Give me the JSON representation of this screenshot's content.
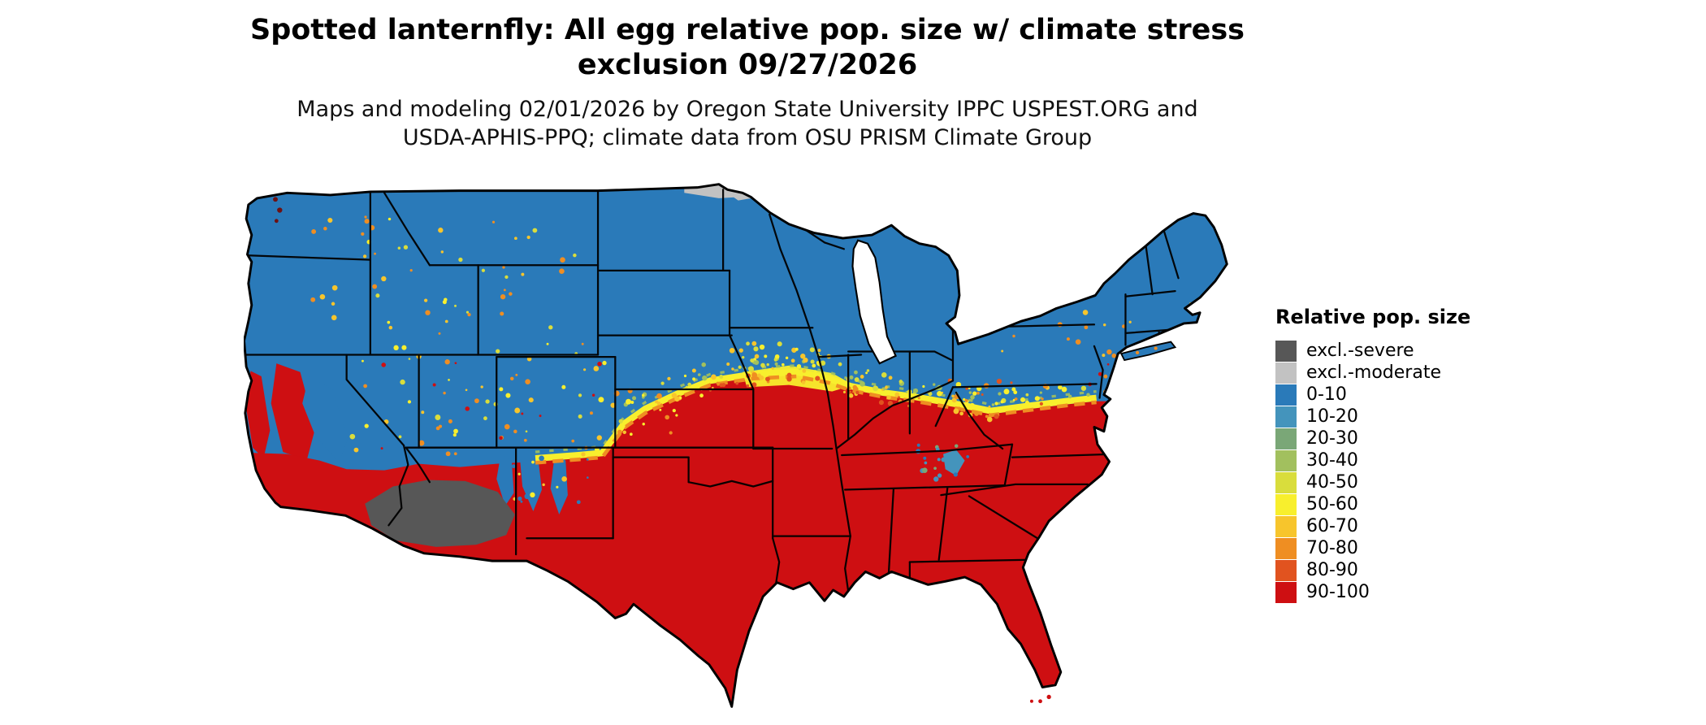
{
  "header": {
    "title_line1": "Spotted lanternfly: All egg relative pop. size w/ climate stress",
    "title_line2": "exclusion 09/27/2026",
    "subtitle_line1": "Maps and modeling 02/01/2026 by Oregon State University IPPC USPEST.ORG and",
    "subtitle_line2": "USDA-APHIS-PPQ; climate data from OSU PRISM Climate Group"
  },
  "legend": {
    "title": "Relative pop. size",
    "items": [
      {
        "label": "excl.-severe",
        "color": "#575757"
      },
      {
        "label": "excl.-moderate",
        "color": "#c2c2c2"
      },
      {
        "label": "0-10",
        "color": "#2a7ab9"
      },
      {
        "label": "10-20",
        "color": "#4494bc"
      },
      {
        "label": "20-30",
        "color": "#7aa777"
      },
      {
        "label": "30-40",
        "color": "#a2c05e"
      },
      {
        "label": "40-50",
        "color": "#d9dd3c"
      },
      {
        "label": "50-60",
        "color": "#f8ef2d"
      },
      {
        "label": "60-70",
        "color": "#f7c52c"
      },
      {
        "label": "70-80",
        "color": "#ef8e22"
      },
      {
        "label": "80-90",
        "color": "#e1531f"
      },
      {
        "label": "90-100",
        "color": "#ce0f12"
      }
    ]
  },
  "map": {
    "region_label": "Continental United States choropleth of relative population size"
  }
}
